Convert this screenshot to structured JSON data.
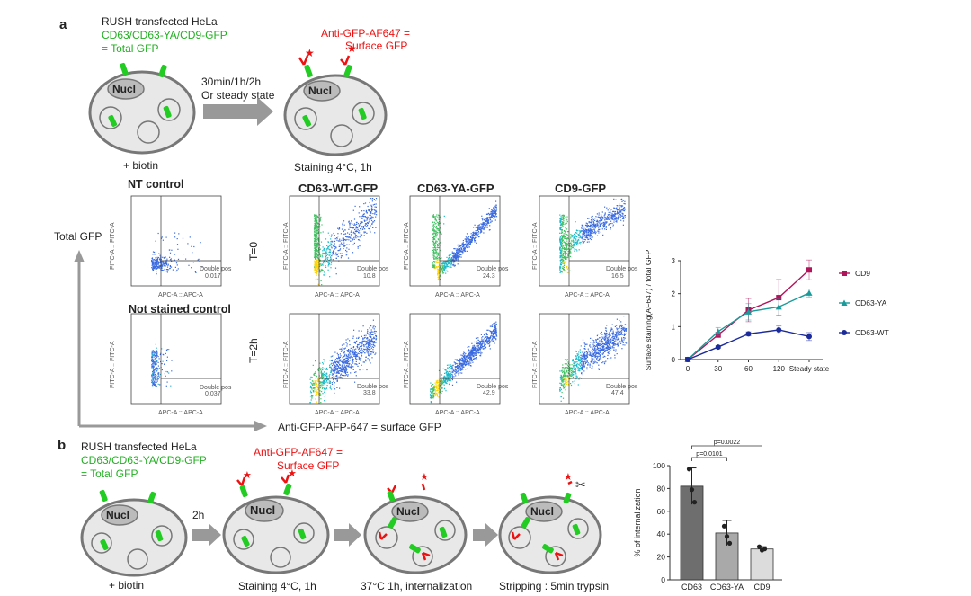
{
  "panel_a": {
    "letter": "a",
    "header_line1": "RUSH transfected HeLa",
    "header_line2": "CD63/CD63-YA/CD9-GFP",
    "header_line3": "= Total GFP",
    "anti_line1": "Anti-GFP-AF647 =",
    "anti_line2": "Surface GFP",
    "nucl": "Nucl",
    "time_line1": "30min/1h/2h",
    "time_line2": "Or steady state",
    "biotin": "+ biotin",
    "staining": "Staining 4°C, 1h",
    "nt_control": "NT control",
    "not_stained": "Not stained control",
    "col_wt": "CD63-WT-GFP",
    "col_ya": "CD63-YA-GFP",
    "col_cd9": "CD9-GFP",
    "row_t0": "T=0",
    "row_t2h": "T=2h",
    "y_axis_label": "Total GFP",
    "x_axis_label": "Anti-GFP-AFP-647 = surface GFP",
    "facs_x_label": "APC-A :: APC-A",
    "facs_y_label": "FITC-A :: FITC-A",
    "gate_label": "Double pos",
    "gate_values": {
      "nt": "0.017",
      "not_stained": "0.037",
      "wt_t0": "10.8",
      "ya_t0": "24.3",
      "cd9_t0": "16.5",
      "wt_t2h": "33.8",
      "ya_t2h": "42.9",
      "cd9_t2h": "47.4"
    }
  },
  "panel_b": {
    "letter": "b",
    "header_line1": "RUSH transfected HeLa",
    "header_line2": "CD63/CD63-YA/CD9-GFP",
    "header_line3": "= Total GFP",
    "anti_line1": "Anti-GFP-AF647 =",
    "anti_line2": "Surface GFP",
    "nucl": "Nucl",
    "arrow_2h": "2h",
    "biotin": "+ biotin",
    "staining": "Staining 4°C, 1h",
    "internalization": "37°C 1h, internalization",
    "stripping": "Stripping : 5min trypsin"
  },
  "chart_data": [
    {
      "type": "line",
      "ylabel": "Surface staining(AF647) / total GFP",
      "x_ticks": [
        "0",
        "30",
        "60",
        "120",
        "Steady state"
      ],
      "ylim": [
        0,
        3
      ],
      "y_ticks": [
        "0",
        "1",
        "2",
        "3"
      ],
      "legend_position": "right",
      "series": [
        {
          "name": "CD9",
          "color": "#b0145a",
          "marker": "square",
          "values": [
            0,
            0.75,
            1.5,
            1.88,
            2.72
          ],
          "err": [
            0,
            0.08,
            0.35,
            0.55,
            0.3
          ]
        },
        {
          "name": "CD63-YA",
          "color": "#1a9a9a",
          "marker": "triangle",
          "values": [
            0,
            0.85,
            1.45,
            1.6,
            2.02
          ],
          "err": [
            0,
            0.12,
            0.25,
            0.25,
            0.12
          ]
        },
        {
          "name": "CD63-WT",
          "color": "#1a2a9a",
          "marker": "circle",
          "values": [
            0,
            0.38,
            0.78,
            0.9,
            0.7
          ],
          "err": [
            0,
            0.04,
            0.06,
            0.12,
            0.12
          ]
        }
      ]
    },
    {
      "type": "bar",
      "ylabel": "% of internalization",
      "categories": [
        "CD63",
        "CD63-YA",
        "CD9"
      ],
      "values": [
        82,
        41,
        27
      ],
      "err": [
        16,
        11,
        2
      ],
      "points": [
        [
          97,
          79,
          68
        ],
        [
          47,
          38,
          32
        ],
        [
          29,
          26,
          27
        ]
      ],
      "colors": [
        "#6e6e6e",
        "#a9a9a9",
        "#dcdcdc"
      ],
      "ylim": [
        0,
        100
      ],
      "y_ticks": [
        "0",
        "20",
        "40",
        "60",
        "80",
        "100"
      ],
      "pvalues": [
        {
          "text": "p=0.0101",
          "from": 0,
          "to": 1
        },
        {
          "text": "p=0.0022",
          "from": 0,
          "to": 2
        }
      ]
    }
  ]
}
